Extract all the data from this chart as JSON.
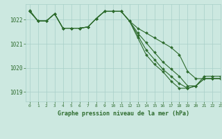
{
  "bg_color": "#cce8e0",
  "grid_color": "#a8cfc8",
  "line_color": "#2d6b2d",
  "xlim": [
    -0.5,
    23
  ],
  "ylim": [
    1018.6,
    1022.65
  ],
  "yticks": [
    1019,
    1020,
    1021,
    1022
  ],
  "xticks": [
    0,
    1,
    2,
    3,
    4,
    5,
    6,
    7,
    8,
    9,
    10,
    11,
    12,
    13,
    14,
    15,
    16,
    17,
    18,
    19,
    20,
    21,
    22,
    23
  ],
  "series": [
    [
      1022.35,
      1021.95,
      1021.95,
      1022.25,
      1021.65,
      1021.65,
      1021.65,
      1021.7,
      1022.05,
      1022.35,
      1022.35,
      1022.35,
      1021.95,
      1021.65,
      1021.45,
      1021.25,
      1021.05,
      1020.85,
      1020.55,
      1019.85,
      1019.55,
      1019.55,
      1019.55,
      1019.55
    ],
    [
      1022.35,
      1021.95,
      1021.95,
      1022.25,
      1021.65,
      1021.65,
      1021.65,
      1021.7,
      1022.05,
      1022.35,
      1022.35,
      1022.35,
      1021.95,
      1021.45,
      1021.05,
      1020.65,
      1020.25,
      1019.95,
      1019.65,
      1019.25,
      1019.25,
      1019.55,
      1019.55,
      1019.55
    ],
    [
      1022.35,
      1021.95,
      1021.95,
      1022.25,
      1021.65,
      1021.65,
      1021.65,
      1021.7,
      1022.05,
      1022.35,
      1022.35,
      1022.35,
      1021.95,
      1021.35,
      1020.75,
      1020.35,
      1019.95,
      1019.65,
      1019.35,
      1019.15,
      1019.25,
      1019.55,
      1019.55,
      1019.55
    ],
    [
      1022.4,
      1021.95,
      1021.95,
      1022.25,
      1021.65,
      1021.65,
      1021.65,
      1021.7,
      1022.05,
      1022.35,
      1022.35,
      1022.35,
      1021.95,
      1021.25,
      1020.55,
      1020.15,
      1019.85,
      1019.45,
      1019.15,
      1019.15,
      1019.25,
      1019.65,
      1019.65,
      1019.65
    ]
  ],
  "xlabel": "Graphe pression niveau de la mer (hPa)",
  "markersize": 2.0,
  "linewidth": 0.8,
  "figwidth": 3.2,
  "figheight": 2.0,
  "dpi": 100
}
